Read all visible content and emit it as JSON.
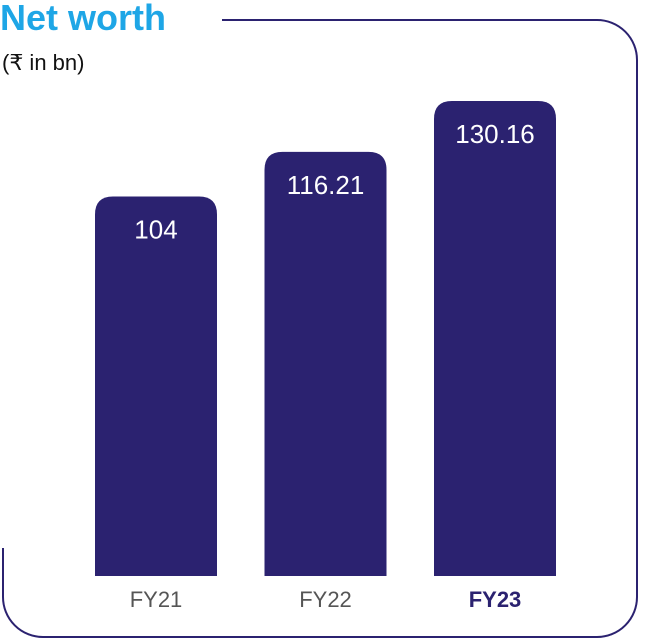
{
  "chart_data": {
    "type": "bar",
    "title": "Net worth",
    "subtitle": "(₹ in bn)",
    "categories": [
      "FY21",
      "FY22",
      "FY23"
    ],
    "values": [
      104,
      116.21,
      130.16
    ],
    "value_labels": [
      "104",
      "116.21",
      "130.16"
    ],
    "color": "#2b2270"
  }
}
